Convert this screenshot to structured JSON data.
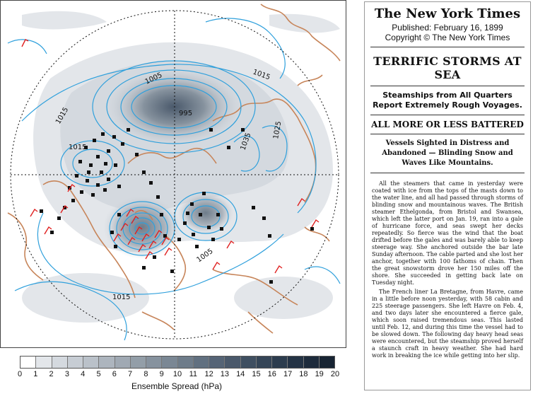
{
  "map": {
    "isobars": [
      "1015",
      "1005",
      "995",
      "1035",
      "1025",
      "1015",
      "1005",
      "1015"
    ]
  },
  "legend": {
    "ticks": [
      "0",
      "1",
      "2",
      "3",
      "4",
      "5",
      "6",
      "7",
      "8",
      "9",
      "10",
      "11",
      "12",
      "13",
      "14",
      "15",
      "16",
      "17",
      "18",
      "19",
      "20"
    ],
    "colors": [
      "#ffffff",
      "#e3e6ea",
      "#d4d9df",
      "#c7cdd4",
      "#bac1c9",
      "#adb5be",
      "#a0a9b3",
      "#939ea8",
      "#86929e",
      "#7a8794",
      "#6e7c8a",
      "#617080",
      "#556476",
      "#4a596b",
      "#3f4f61",
      "#354557",
      "#2c3c4e",
      "#243345",
      "#1d2b3c",
      "#172433"
    ],
    "title": "Ensemble Spread (hPa)"
  },
  "newspaper": {
    "masthead": "The New York Times",
    "published": "Published: February 16, 1899",
    "copyright": "Copyright © The New York Times",
    "headline": "TERRIFIC STORMS AT SEA",
    "deck": "Steamships from All Quarters Report Extremely Rough Voyages.",
    "subhead": "ALL MORE OR LESS BATTERED",
    "deck2": "Vessels Sighted in Distress and Abandoned — Blinding Snow and Waves Like Mountains.",
    "para1": "All the steamers that came in yesterday were coated with ice from the tops of the masts down to the water line, and all had passed through storms of blinding snow and mountainous waves. The British steamer Ethelgonda, from Bristol and Swansea, which left the latter port on Jan. 19, ran into a gale of hurricane force, and seas swept her decks repeatedly. So fierce was the wind that the boat drifted before the gales and was barely able to keep steerage way. She anchored outside the bar late Sunday afternoon. The cable parted and she lost her anchor, together with 100 fathoms of chain. Then the great snowstorm drove her 150 miles off the shore. She succeeded in getting back late on Tuesday night.",
    "para2": "The French liner La Bretagne, from Havre, came in a little before noon yesterday, with 58 cabin and 225 steerage passengers. She left Havre on Feb. 4, and two days later she encountered a fierce gale, which soon raised tremendous seas. This lasted until Feb. 12, and during this time the vessel had to be slowed down. The following day heavy head seas were encountered, but the steamship proved herself a staunch craft in heavy weather. She had hard work in breaking the ice while getting into her slip."
  }
}
